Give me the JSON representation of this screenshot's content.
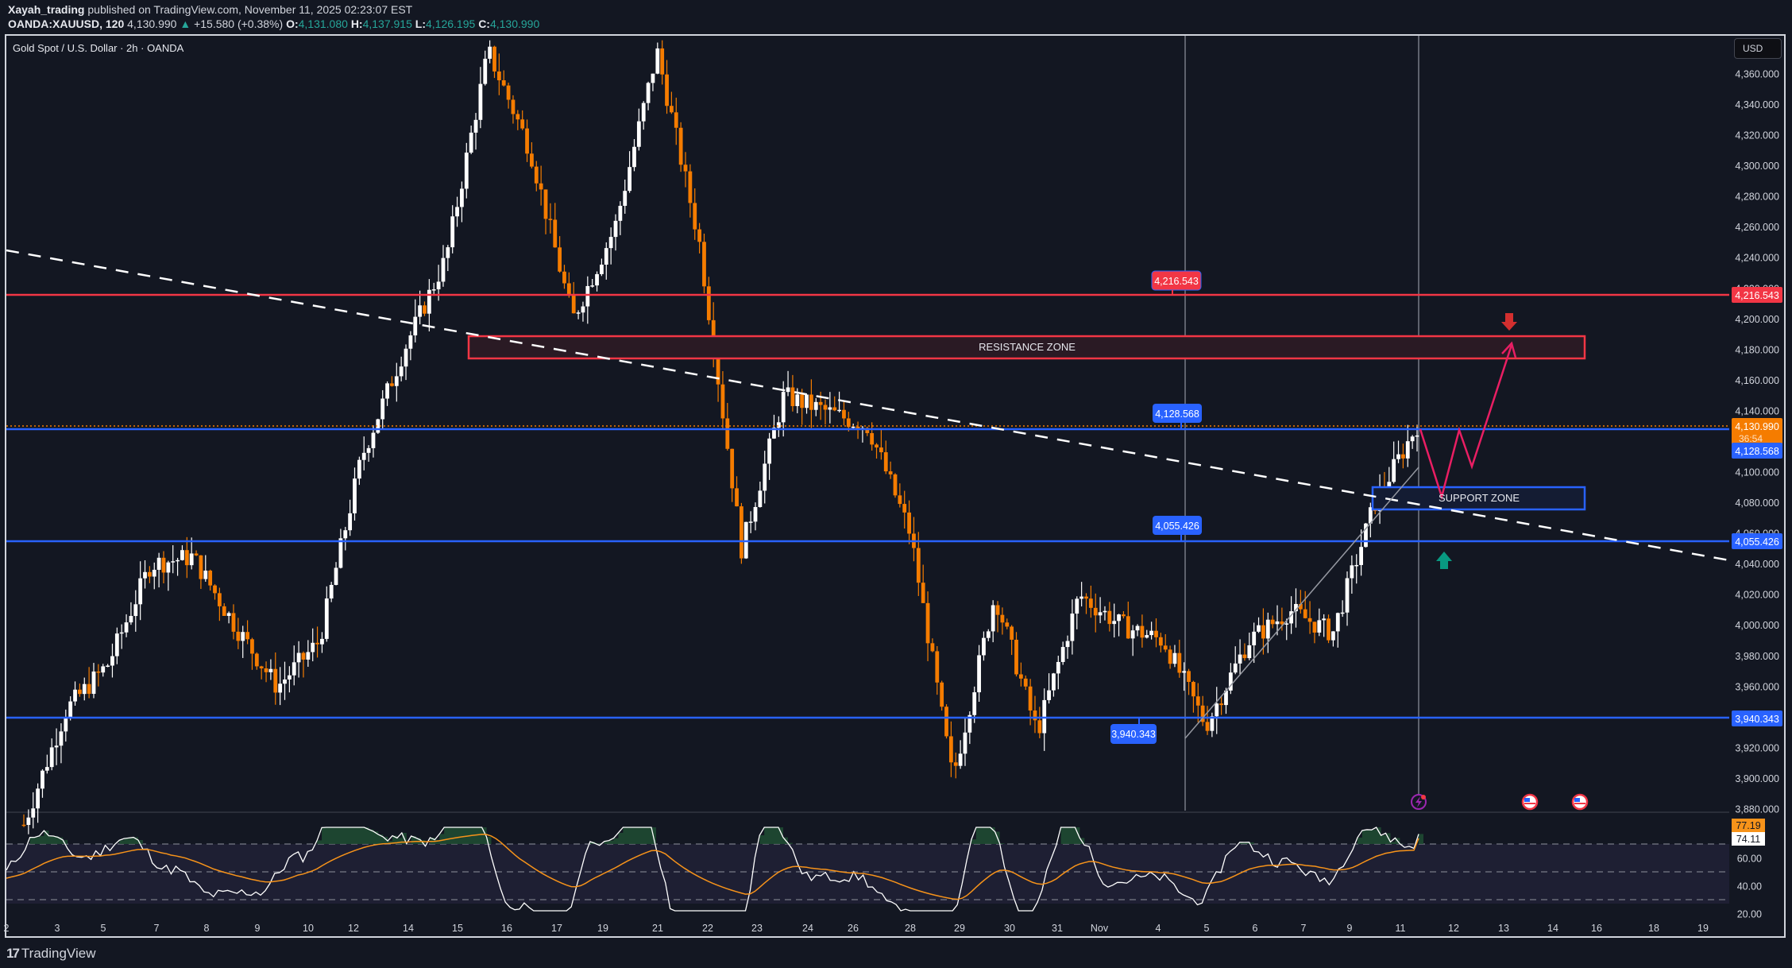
{
  "header": {
    "author": "Xayah_trading",
    "published": "published on TradingView.com, November 11, 2025 02:23:07 EST",
    "symbol": "OANDA:XAUUSD, 120",
    "last": "4,130.990",
    "change": "+15.580 (+0.38%)",
    "open_label": "O:",
    "open": "4,131.080",
    "high_label": "H:",
    "high": "4,137.915",
    "low_label": "L:",
    "low": "4,126.195",
    "close_label": "C:",
    "close": "4,130.990"
  },
  "chart_title": "Gold Spot / U.S. Dollar · 2h · OANDA",
  "currency_button": "USD",
  "logo": "TradingView",
  "colors": {
    "background": "#131722",
    "bull_candle": "#ffffff",
    "bear_candle": "#f57c00",
    "resistance": "#f23645",
    "support": "#2962ff",
    "projection": "#e91e63",
    "rsi_line": "#ffffff",
    "rsi_ma": "#f7931a",
    "up_arrow": "#089981",
    "down_arrow": "#d32f2f"
  },
  "price_axis": {
    "ticks": [
      "4,360.000",
      "4,340.000",
      "4,320.000",
      "4,300.000",
      "4,280.000",
      "4,260.000",
      "4,240.000",
      "4,220.000",
      "4,200.000",
      "4,180.000",
      "4,160.000",
      "4,140.000",
      "4,120.000",
      "4,100.000",
      "4,080.000",
      "4,060.000",
      "4,040.000",
      "4,020.000",
      "4,000.000",
      "3,980.000",
      "3,960.000",
      "3,940.000",
      "3,920.000",
      "3,900.000",
      "3,880.000"
    ],
    "current_price": "4,130.990",
    "countdown": "36:54",
    "level_labels": [
      "4,216.543",
      "4,128.568",
      "4,055.426",
      "3,940.343"
    ]
  },
  "rsi_axis": {
    "ticks": [
      "60.00",
      "40.00",
      "20.00"
    ],
    "rsi_value": "77.19",
    "rsi_ma_value": "74.11"
  },
  "time_axis": [
    "2",
    "3",
    "5",
    "7",
    "8",
    "9",
    "10",
    "12",
    "14",
    "15",
    "16",
    "17",
    "19",
    "21",
    "22",
    "23",
    "24",
    "26",
    "28",
    "29",
    "30",
    "31",
    "Nov",
    "4",
    "5",
    "6",
    "7",
    "9",
    "11",
    "12",
    "13",
    "14",
    "16",
    "18",
    "19"
  ],
  "annotations": {
    "resistance_zone": "RESISTANCE ZONE",
    "support_zone": "SUPPORT ZONE",
    "resistance_line_label": "4,216.543",
    "support_line_1_label": "4,128.568",
    "support_line_2_label": "4,055.426",
    "support_line_3_label": "3,940.343"
  },
  "chart_data": {
    "type": "candlestick",
    "title": "Gold Spot / U.S. Dollar · 2h · OANDA",
    "symbol": "OANDA:XAUUSD",
    "timeframe": "2h",
    "xlabel": "",
    "ylabel": "USD",
    "ylim": [
      3880,
      4370
    ],
    "x_ticks": [
      "2",
      "3",
      "5",
      "7",
      "8",
      "9",
      "10",
      "12",
      "14",
      "15",
      "16",
      "17",
      "19",
      "21",
      "22",
      "23",
      "24",
      "26",
      "28",
      "29",
      "30",
      "31",
      "Nov",
      "4",
      "5",
      "6",
      "7",
      "9",
      "11",
      "12",
      "13",
      "14",
      "16",
      "18",
      "19"
    ],
    "approx_path": [
      {
        "date": "Oct 2",
        "price": 3870
      },
      {
        "date": "Oct 5",
        "price": 3945
      },
      {
        "date": "Oct 7",
        "price": 3975
      },
      {
        "date": "Oct 8",
        "price": 4040
      },
      {
        "date": "Oct 9",
        "price": 4045
      },
      {
        "date": "Oct 9b",
        "price": 4000
      },
      {
        "date": "Oct 10",
        "price": 3960
      },
      {
        "date": "Oct 12",
        "price": 3990
      },
      {
        "date": "Oct 14",
        "price": 4110
      },
      {
        "date": "Oct 15",
        "price": 4180
      },
      {
        "date": "Oct 16",
        "price": 4240
      },
      {
        "date": "Oct 17",
        "price": 4375
      },
      {
        "date": "Oct 17b",
        "price": 4310
      },
      {
        "date": "Oct 18",
        "price": 4200
      },
      {
        "date": "Oct 19",
        "price": 4260
      },
      {
        "date": "Oct 21",
        "price": 4375
      },
      {
        "date": "Oct 21b",
        "price": 4250
      },
      {
        "date": "Oct 22",
        "price": 4050
      },
      {
        "date": "Oct 22b",
        "price": 4150
      },
      {
        "date": "Oct 23",
        "price": 4140
      },
      {
        "date": "Oct 24",
        "price": 4130
      },
      {
        "date": "Oct 26",
        "price": 4060
      },
      {
        "date": "Oct 28",
        "price": 3900
      },
      {
        "date": "Oct 29",
        "price": 4020
      },
      {
        "date": "Oct 30",
        "price": 3930
      },
      {
        "date": "Oct 31",
        "price": 4020
      },
      {
        "date": "Nov 1",
        "price": 4000
      },
      {
        "date": "Nov 4",
        "price": 3990
      },
      {
        "date": "Nov 5",
        "price": 3935
      },
      {
        "date": "Nov 6",
        "price": 3990
      },
      {
        "date": "Nov 7",
        "price": 4010
      },
      {
        "date": "Nov 9",
        "price": 3995
      },
      {
        "date": "Nov 10",
        "price": 4080
      },
      {
        "date": "Nov 11",
        "price": 4131
      }
    ],
    "horizontal_levels": [
      {
        "price": 4216.543,
        "color": "#f23645",
        "label": "4,216.543"
      },
      {
        "price": 4128.568,
        "color": "#2962ff",
        "label": "4,128.568"
      },
      {
        "price": 4055.426,
        "color": "#2962ff",
        "label": "4,055.426"
      },
      {
        "price": 3940.343,
        "color": "#2962ff",
        "label": "3,940.343"
      }
    ],
    "zones": [
      {
        "name": "RESISTANCE ZONE",
        "from": 4176,
        "to": 4190
      },
      {
        "name": "SUPPORT ZONE",
        "from": 4077,
        "to": 4091
      }
    ],
    "trendline": {
      "style": "dashed",
      "from": {
        "date": "Oct 2",
        "price": 4245
      },
      "to": {
        "date": "Nov 19",
        "price": 4040
      }
    },
    "projection_path": [
      4131,
      4085,
      4131,
      4105,
      4185
    ],
    "last_price": 4130.99,
    "indicator": {
      "name": "RSI",
      "value": 77.19,
      "ma_value": 74.11,
      "bands": [
        70,
        50,
        30
      ],
      "ylim": [
        15,
        85
      ]
    }
  }
}
